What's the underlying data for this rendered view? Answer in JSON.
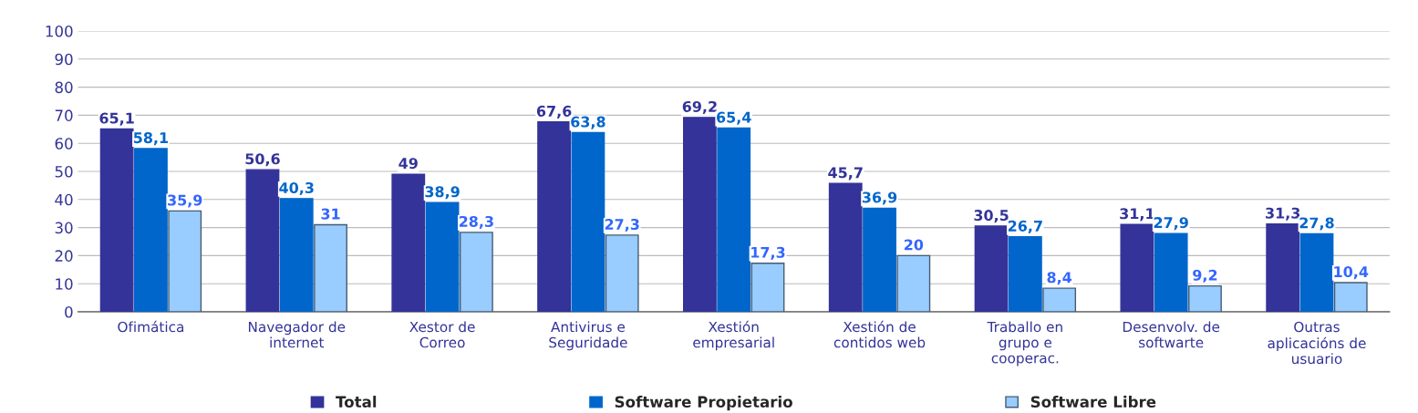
{
  "chart_data": {
    "type": "bar",
    "categories": [
      "Ofimática",
      "Navegador de\ninternet",
      "Xestor de\nCorreo",
      "Antivirus e\nSeguridade",
      "Xestión\nempresarial",
      "Xestión de\ncontidos web",
      "Traballo en\ngrupo e\ncooperac.",
      "Desenvolv. de\nsoftwarte",
      "Outras\naplicacións de\nusuario"
    ],
    "series": [
      {
        "name": "Total",
        "color": "#333399",
        "values": [
          65.1,
          50.6,
          49,
          67.6,
          69.2,
          45.7,
          30.5,
          31.1,
          31.3
        ],
        "value_labels": [
          "65,1",
          "50,6",
          "49",
          "67,6",
          "69,2",
          "45,7",
          "30,5",
          "31,1",
          "31,3"
        ]
      },
      {
        "name": "Software Propietario",
        "color": "#0066cc",
        "values": [
          58.1,
          40.3,
          38.9,
          63.8,
          65.4,
          36.9,
          26.7,
          27.9,
          27.8
        ],
        "value_labels": [
          "58,1",
          "40,3",
          "38,9",
          "63,8",
          "65,4",
          "36,9",
          "26,7",
          "27,9",
          "27,8"
        ]
      },
      {
        "name": "Software Libre",
        "color": "#99ccff",
        "values": [
          35.9,
          31,
          28.3,
          27.3,
          17.3,
          20,
          8.4,
          9.2,
          10.4
        ],
        "value_labels": [
          "35,9",
          "31",
          "28,3",
          "27,3",
          "17,3",
          "20",
          "8,4",
          "9,2",
          "10,4"
        ]
      }
    ],
    "ylim": [
      0,
      100
    ],
    "yticks": [
      0,
      10,
      20,
      30,
      40,
      50,
      60,
      70,
      80,
      90,
      100
    ],
    "grid": "y",
    "legend": "bottom"
  }
}
